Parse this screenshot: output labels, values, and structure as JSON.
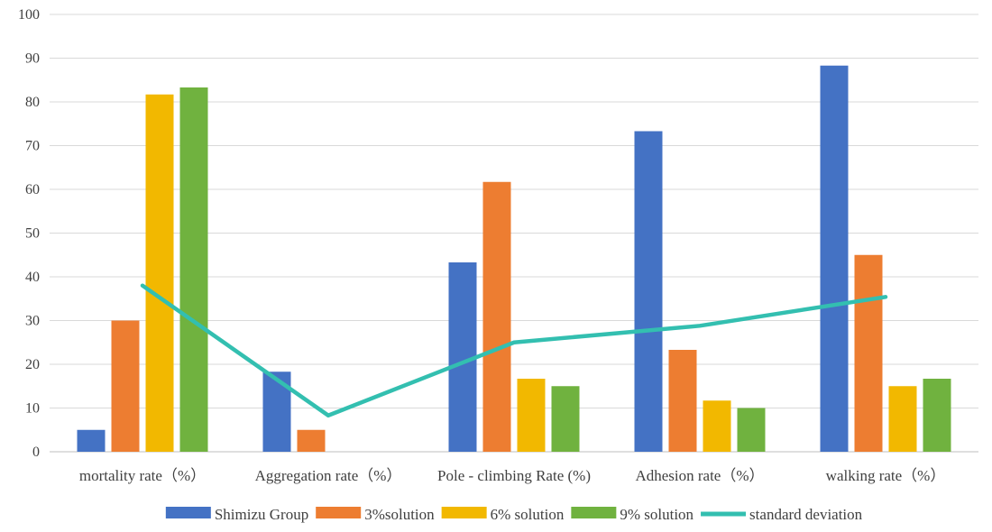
{
  "chart_data": {
    "type": "bar",
    "categories": [
      "mortality rate（%）",
      "Aggregation rate（%）",
      "Pole - climbing Rate (%)",
      "Adhesion rate（%）",
      "walking rate（%）"
    ],
    "series": [
      {
        "name": "Shimizu Group",
        "type": "bar",
        "color": "#4472C4",
        "values": [
          5,
          18.3,
          43.3,
          73.3,
          88.3
        ]
      },
      {
        "name": " 3%solution",
        "type": "bar",
        "color": "#ED7D31",
        "values": [
          30,
          5,
          61.7,
          23.3,
          45
        ]
      },
      {
        "name": "6% solution",
        "type": "bar",
        "color": "#F2B800",
        "values": [
          81.7,
          0,
          16.7,
          11.7,
          15
        ]
      },
      {
        "name": "9% solution",
        "type": "bar",
        "color": "#70B23F",
        "values": [
          83.3,
          0,
          15,
          10,
          16.7
        ]
      },
      {
        "name": "standard deviation",
        "type": "line",
        "color": "#33BFB0",
        "values": [
          38,
          8.3,
          25,
          28.8,
          35.4
        ]
      }
    ],
    "ylim": [
      0,
      100
    ],
    "yticks": [
      "0",
      "10",
      "20",
      "30",
      "40",
      "50",
      "60",
      "70",
      "80",
      "90",
      "100"
    ],
    "grid": true,
    "legend": "bottom"
  }
}
